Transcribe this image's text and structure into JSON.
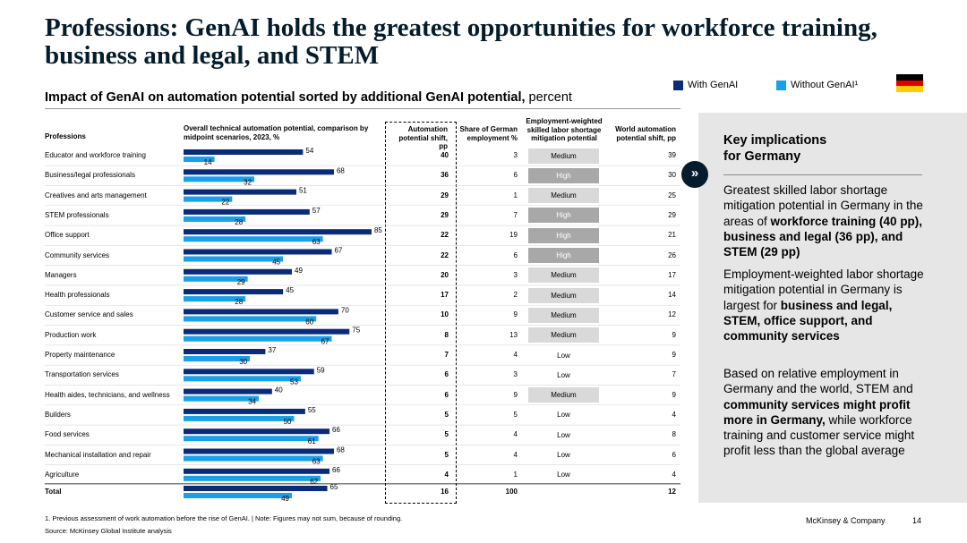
{
  "title": "Professions: GenAI holds the greatest opportunities for workforce training, business and legal, and STEM",
  "subtitle": {
    "bold": "Impact of GenAI on automation potential sorted by additional GenAI potential,",
    "rest": " percent"
  },
  "legend": {
    "with": "With GenAI",
    "without": "Without GenAI¹",
    "with_color": "#0a2a7a",
    "without_color": "#1aa0e6"
  },
  "flag": {
    "colors": [
      "#000000",
      "#dd0000",
      "#ffce00"
    ]
  },
  "headers": {
    "professions": "Professions",
    "overall": "Overall technical automation potential, comparison by midpoint scenarios, 2023, %",
    "shift": "Automation potential shift, pp",
    "share": "Share of German employment %",
    "mitigation": "Employment-weighted skilled labor shortage mitigation potential",
    "world": "World automation potential shift, pp"
  },
  "chart_data": {
    "type": "bar",
    "orientation": "horizontal",
    "categories": [
      "Educator and workforce training",
      "Business/legal professionals",
      "Creatives and arts management",
      "STEM professionals",
      "Office support",
      "Community services",
      "Managers",
      "Health professionals",
      "Customer service and sales",
      "Production work",
      "Property maintenance",
      "Transportation services",
      "Health aides, technicians, and wellness",
      "Builders",
      "Food services",
      "Mechanical installation and repair",
      "Agriculture",
      "Total"
    ],
    "series": [
      {
        "name": "With GenAI",
        "values": [
          54,
          68,
          51,
          57,
          85,
          67,
          49,
          45,
          70,
          75,
          37,
          59,
          40,
          55,
          66,
          68,
          66,
          65
        ]
      },
      {
        "name": "Without GenAI¹",
        "values": [
          14,
          32,
          22,
          28,
          63,
          45,
          29,
          28,
          60,
          67,
          30,
          53,
          34,
          50,
          61,
          63,
          62,
          49
        ]
      }
    ],
    "xlim": [
      0,
      100
    ],
    "xlabel": "Overall technical automation potential, comparison by midpoint scenarios, 2023, %"
  },
  "table": {
    "shift": [
      "40",
      "36",
      "29",
      "29",
      "22",
      "22",
      "20",
      "17",
      "10",
      "8",
      "7",
      "6",
      "6",
      "5",
      "5",
      "5",
      "4",
      "16"
    ],
    "share": [
      "3",
      "6",
      "1",
      "7",
      "19",
      "6",
      "3",
      "2",
      "9",
      "13",
      "4",
      "3",
      "9",
      "5",
      "4",
      "4",
      "1",
      "100"
    ],
    "mitigation": [
      "Medium",
      "High",
      "Medium",
      "High",
      "High",
      "High",
      "Medium",
      "Medium",
      "Medium",
      "Medium",
      "Low",
      "Low",
      "Medium",
      "Low",
      "Low",
      "Low",
      "Low",
      ""
    ],
    "world": [
      "39",
      "30",
      "25",
      "29",
      "21",
      "26",
      "17",
      "14",
      "12",
      "9",
      "9",
      "7",
      "9",
      "4",
      "8",
      "6",
      "4",
      "12"
    ]
  },
  "panel": {
    "title_line1": "Key implications",
    "title_line2": "for Germany",
    "icon": "double-chevron-right-icon",
    "p1": {
      "a": "Greatest skilled labor shortage mitigation potential in Germany in the areas of ",
      "b": "workforce training (40 pp), business and legal (36 pp), and STEM (29 pp)"
    },
    "p2": {
      "a": "Employment-weighted labor shortage mitigation potential in Germany is largest for ",
      "b": "business and legal, STEM, office support, and community services"
    },
    "p3": {
      "a": "Based on relative employment in Germany and the world, STEM and ",
      "b": "community services might profit more in Germany,",
      "c": " while workforce training and customer service might profit less than the global average"
    }
  },
  "footer": {
    "note": "1. Previous assessment of work automation before the rise of GenAI. | Note: Figures may not sum, because of rounding.",
    "source": "Source: McKinsey Global Institute analysis",
    "brand": "McKinsey & Company",
    "page": "14"
  }
}
